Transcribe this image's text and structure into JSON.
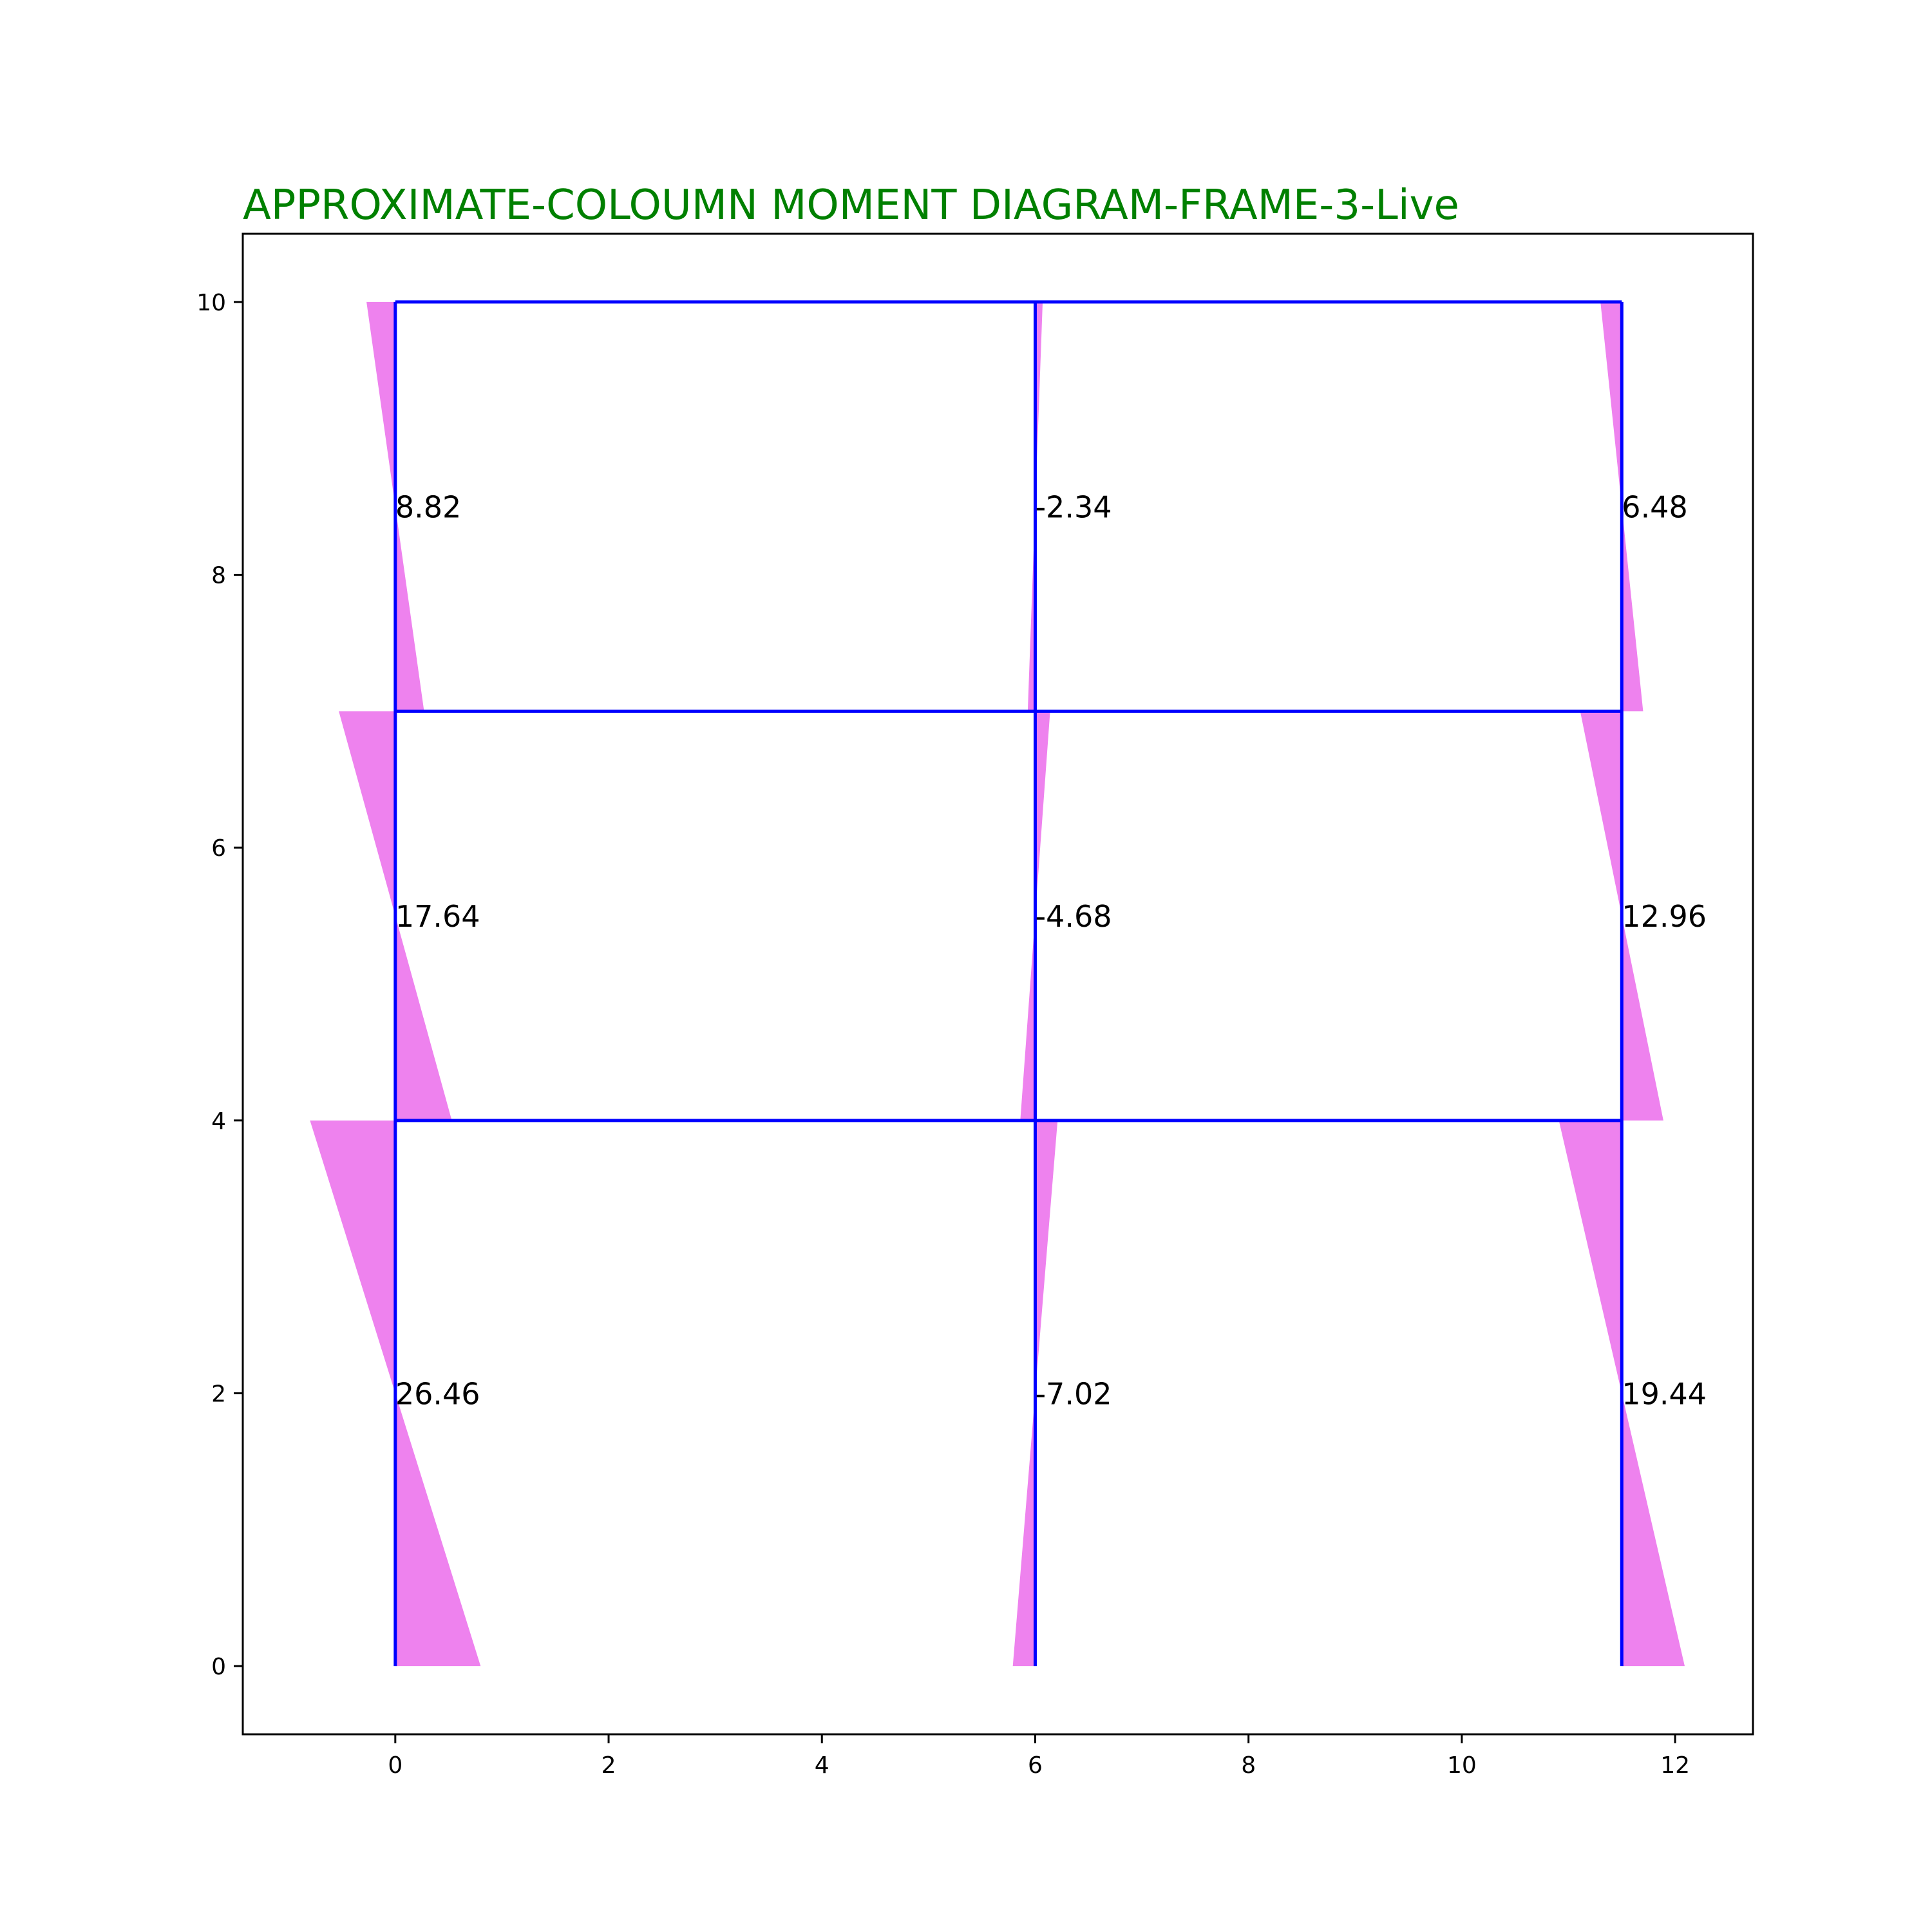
{
  "chart_data": {
    "type": "frame-moment-diagram",
    "title": "APPROXIMATE-COLOUMN MOMENT DIAGRAM-FRAME-3-Live",
    "xlabel": "",
    "ylabel": "",
    "xlim": [
      -1.43,
      12.73
    ],
    "ylim": [
      -0.5,
      10.5
    ],
    "xticks": [
      0,
      2,
      4,
      6,
      8,
      10,
      12
    ],
    "yticks": [
      0,
      2,
      4,
      6,
      8,
      10
    ],
    "grid": false,
    "colors": {
      "title": "#008000",
      "frame": "#0000ff",
      "moment_fill": "#ee82ee",
      "text": "#000000",
      "axes": "#000000"
    },
    "frame": {
      "column_x": [
        0,
        6,
        11.5
      ],
      "floor_y": [
        0,
        4,
        7,
        10
      ]
    },
    "columns": [
      {
        "x": 0,
        "y_bottom": 0,
        "y_top": 4,
        "top_offset": -0.8,
        "bottom_offset": 0.8,
        "label": "26.46",
        "label_y": 2
      },
      {
        "x": 0,
        "y_bottom": 4,
        "y_top": 7,
        "top_offset": -0.53,
        "bottom_offset": 0.53,
        "label": "17.64",
        "label_y": 5.5
      },
      {
        "x": 0,
        "y_bottom": 7,
        "y_top": 10,
        "top_offset": -0.27,
        "bottom_offset": 0.27,
        "label": "8.82",
        "label_y": 8.5
      },
      {
        "x": 6,
        "y_bottom": 0,
        "y_top": 4,
        "top_offset": 0.21,
        "bottom_offset": -0.21,
        "label": "-7.02",
        "label_y": 2
      },
      {
        "x": 6,
        "y_bottom": 4,
        "y_top": 7,
        "top_offset": 0.14,
        "bottom_offset": -0.14,
        "label": "-4.68",
        "label_y": 5.5
      },
      {
        "x": 6,
        "y_bottom": 7,
        "y_top": 10,
        "top_offset": 0.07,
        "bottom_offset": -0.07,
        "label": "-2.34",
        "label_y": 8.5
      },
      {
        "x": 11.5,
        "y_bottom": 0,
        "y_top": 4,
        "top_offset": -0.59,
        "bottom_offset": 0.59,
        "label": "19.44",
        "label_y": 2
      },
      {
        "x": 11.5,
        "y_bottom": 4,
        "y_top": 7,
        "top_offset": -0.39,
        "bottom_offset": 0.39,
        "label": "12.96",
        "label_y": 5.5
      },
      {
        "x": 11.5,
        "y_bottom": 7,
        "y_top": 10,
        "top_offset": -0.2,
        "bottom_offset": 0.2,
        "label": "6.48",
        "label_y": 8.5
      }
    ]
  }
}
